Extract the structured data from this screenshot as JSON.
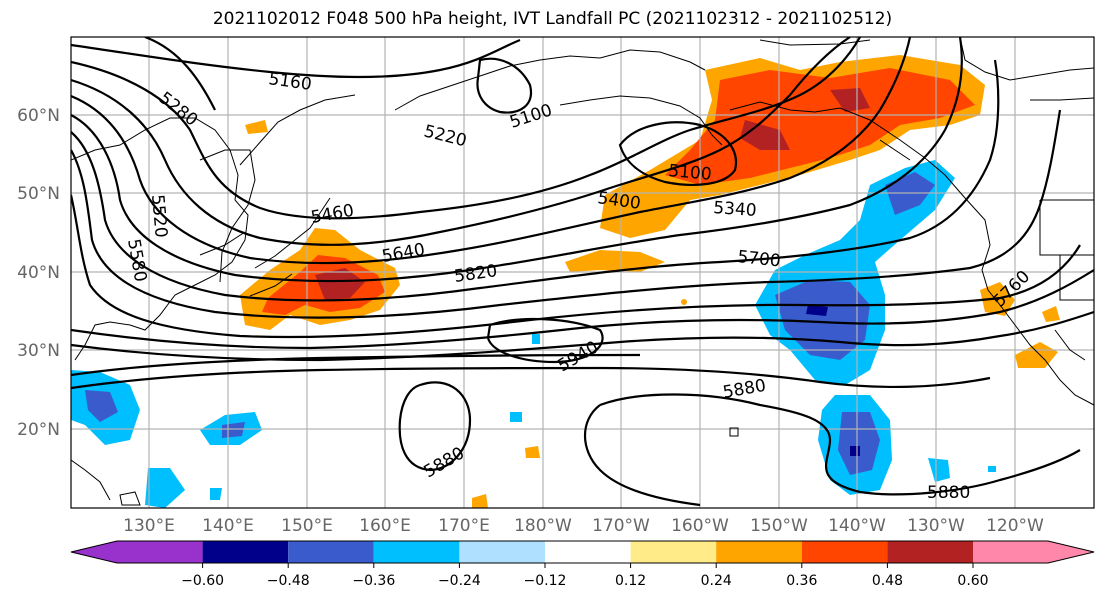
{
  "title": "2021102012 F048 500 hPa height, IVT Landfall PC (2021102312 - 2021102512)",
  "lat_labels": [
    "60°N",
    "50°N",
    "40°N",
    "30°N",
    "20°N"
  ],
  "lon_labels": [
    "130°E",
    "140°E",
    "150°E",
    "160°E",
    "170°E",
    "180°W",
    "170°W",
    "160°W",
    "150°W",
    "140°W",
    "130°W",
    "120°W"
  ],
  "contour_labels": [
    "5160",
    "5280",
    "5220",
    "5100",
    "5100",
    "5400",
    "5340",
    "5460",
    "5640",
    "5820",
    "5700",
    "5760",
    "5940",
    "5880",
    "5880",
    "5880",
    "5580",
    "5520"
  ],
  "colorbar": {
    "colors": [
      "#9932CC",
      "#00008B",
      "#3A5BCC",
      "#00BFFF",
      "#B0E0FF",
      "#FFFFFF",
      "#FFEB88",
      "#FFA500",
      "#FF4500",
      "#B22222",
      "#FF88AA"
    ],
    "tick_labels": [
      "−0.60",
      "−0.48",
      "−0.36",
      "−0.24",
      "−0.12",
      "0.12",
      "0.24",
      "0.36",
      "0.48",
      "0.60"
    ]
  }
}
